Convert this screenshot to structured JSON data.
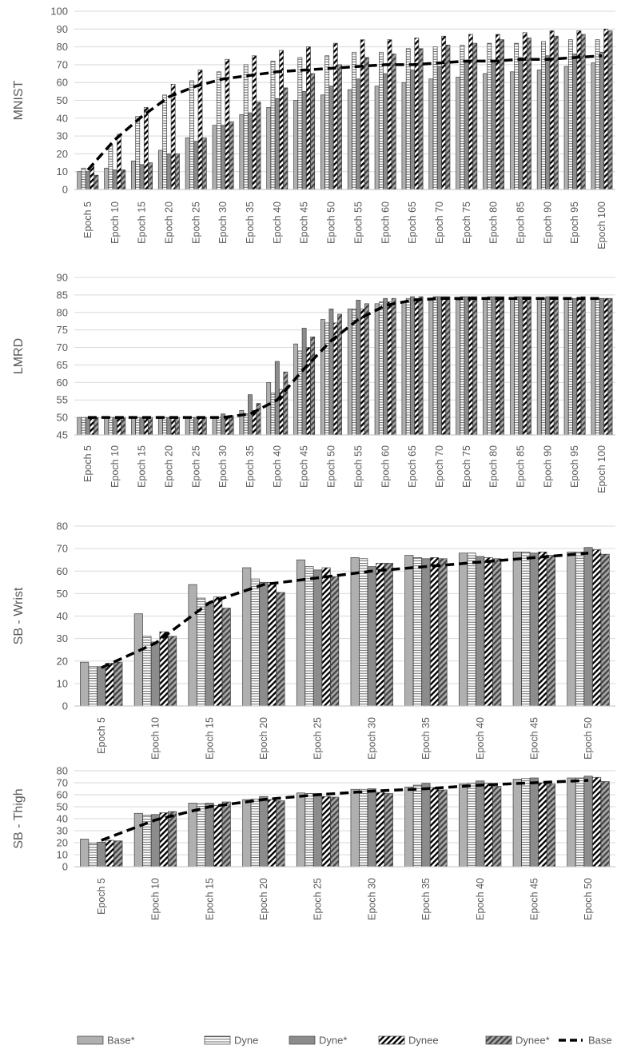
{
  "chart_data": [
    {
      "type": "bar",
      "title": "",
      "ylabel": "MNIST",
      "xlabel": "",
      "ylim": [
        0,
        100
      ],
      "ystep": 10,
      "grid": true,
      "categories": [
        "Epoch 5",
        "Epoch 10",
        "Epoch 15",
        "Epoch 20",
        "Epoch 25",
        "Epoch 30",
        "Epoch 35",
        "Epoch 40",
        "Epoch 45",
        "Epoch 50",
        "Epoch 55",
        "Epoch 60",
        "Epoch 65",
        "Epoch 70",
        "Epoch 75",
        "Epoch 80",
        "Epoch 85",
        "Epoch 90",
        "Epoch 95",
        "Epoch 100"
      ],
      "series": [
        {
          "name": "Base*",
          "values": [
            10,
            12,
            16,
            22,
            29,
            36,
            42,
            46,
            50,
            53,
            56,
            58,
            60,
            62,
            63,
            65,
            66,
            67,
            69,
            71
          ]
        },
        {
          "name": "Dyne",
          "values": [
            12,
            25,
            41,
            53,
            61,
            66,
            70,
            72,
            74,
            75,
            77,
            77,
            79,
            80,
            81,
            82,
            82,
            83,
            84,
            84
          ]
        },
        {
          "name": "Dyne*",
          "values": [
            10,
            11,
            14,
            20,
            27,
            36,
            43,
            51,
            55,
            58,
            62,
            65,
            67,
            69,
            71,
            72,
            74,
            75,
            76,
            77
          ]
        },
        {
          "name": "Dynee",
          "values": [
            13,
            31,
            46,
            59,
            67,
            73,
            75,
            78,
            80,
            82,
            84,
            84,
            85,
            86,
            87,
            87,
            88,
            89,
            89,
            90
          ]
        },
        {
          "name": "Dynee*",
          "values": [
            8,
            11,
            15,
            20,
            29,
            38,
            49,
            57,
            65,
            70,
            74,
            76,
            79,
            81,
            82,
            84,
            85,
            86,
            87,
            89
          ]
        },
        {
          "name": "Base",
          "type": "line",
          "values": [
            11,
            28,
            41,
            52,
            58,
            62,
            64,
            66,
            67,
            68,
            69,
            70,
            70,
            71,
            72,
            72,
            73,
            73,
            74,
            75
          ]
        }
      ]
    },
    {
      "type": "bar",
      "title": "",
      "ylabel": "LMRD",
      "xlabel": "",
      "ylim": [
        45,
        90
      ],
      "ystep": 5,
      "grid": true,
      "categories": [
        "Epoch 5",
        "Epoch 10",
        "Epoch 15",
        "Epoch 20",
        "Epoch 25",
        "Epoch 30",
        "Epoch 35",
        "Epoch 40",
        "Epoch 45",
        "Epoch 50",
        "Epoch 55",
        "Epoch 60",
        "Epoch 65",
        "Epoch 70",
        "Epoch 75",
        "Epoch 80",
        "Epoch 85",
        "Epoch 90",
        "Epoch 95",
        "Epoch 100"
      ],
      "series": [
        {
          "name": "Base*",
          "values": [
            50,
            50,
            50,
            50,
            50,
            50,
            52,
            60,
            71,
            78,
            81,
            82.5,
            83,
            83.5,
            83.5,
            84,
            84,
            84,
            84,
            84
          ]
        },
        {
          "name": "Dyne",
          "values": [
            50,
            50,
            50,
            50,
            50,
            50,
            51,
            57,
            69,
            77,
            81,
            83,
            84,
            84.5,
            84.5,
            84.5,
            84.5,
            84,
            84,
            84
          ]
        },
        {
          "name": "Dyne*",
          "values": [
            50,
            50,
            50,
            50,
            50,
            51,
            56.5,
            66,
            75.5,
            81,
            83.5,
            84,
            84.5,
            84.5,
            84.5,
            84.5,
            84.5,
            84.5,
            84,
            84
          ]
        },
        {
          "name": "Dynee",
          "values": [
            50,
            50,
            50,
            50,
            50,
            50,
            52,
            58,
            70,
            77,
            81,
            83,
            84,
            84.5,
            84.5,
            84.5,
            84.5,
            84.5,
            84,
            84
          ]
        },
        {
          "name": "Dynee*",
          "values": [
            50,
            50,
            50,
            50,
            50,
            50.5,
            54,
            63,
            73,
            79.5,
            82.5,
            84,
            84.5,
            84.5,
            84.5,
            84.5,
            84.5,
            84.5,
            84.5,
            84
          ]
        },
        {
          "name": "Base",
          "type": "line",
          "values": [
            50,
            50,
            50,
            50,
            50,
            50,
            51,
            55,
            64,
            72,
            78,
            82,
            83.5,
            84,
            84,
            84,
            84,
            84,
            84,
            84
          ]
        }
      ]
    },
    {
      "type": "bar",
      "title": "",
      "ylabel": "SB - Wrist",
      "xlabel": "",
      "ylim": [
        0,
        80
      ],
      "ystep": 10,
      "grid": true,
      "categories": [
        "Epoch 5",
        "Epoch 10",
        "Epoch 15",
        "Epoch 20",
        "Epoch 25",
        "Epoch 30",
        "Epoch 35",
        "Epoch 40",
        "Epoch 45",
        "Epoch 50"
      ],
      "series": [
        {
          "name": "Base*",
          "values": [
            19.5,
            41,
            54,
            61.5,
            65,
            66,
            67,
            68,
            68.5,
            68.5
          ]
        },
        {
          "name": "Dyne",
          "values": [
            17.5,
            31,
            48,
            56.5,
            62,
            65.5,
            66,
            68,
            68.5,
            68.5
          ]
        },
        {
          "name": "Dyne*",
          "values": [
            17.5,
            28.5,
            46,
            55,
            60.5,
            62,
            65.5,
            66.5,
            68,
            70.5
          ]
        },
        {
          "name": "Dynee",
          "values": [
            19,
            33,
            48.5,
            55,
            61.5,
            63.5,
            66,
            66,
            68.5,
            69.5
          ]
        },
        {
          "name": "Dynee*",
          "values": [
            19.5,
            31,
            43.5,
            50.5,
            57.5,
            63.5,
            65.5,
            65.5,
            67,
            67.5
          ]
        },
        {
          "name": "Base",
          "type": "line",
          "values": [
            17,
            28,
            46,
            54,
            57,
            60,
            62,
            64,
            66,
            68
          ]
        }
      ]
    },
    {
      "type": "bar",
      "title": "",
      "ylabel": "SB - Thigh",
      "xlabel": "",
      "ylim": [
        0,
        80
      ],
      "ystep": 10,
      "grid": true,
      "categories": [
        "Epoch 5",
        "Epoch 10",
        "Epoch 15",
        "Epoch 20",
        "Epoch 25",
        "Epoch 30",
        "Epoch 35",
        "Epoch 40",
        "Epoch 45",
        "Epoch 50"
      ],
      "series": [
        {
          "name": "Base*",
          "values": [
            23,
            44.5,
            53,
            56,
            61.5,
            64.5,
            66.5,
            69,
            73,
            74
          ]
        },
        {
          "name": "Dyne",
          "values": [
            19.5,
            43,
            52.5,
            56.5,
            61,
            64.5,
            68,
            69.5,
            73.5,
            74
          ]
        },
        {
          "name": "Dyne*",
          "values": [
            20.5,
            43.5,
            53,
            58.5,
            61,
            65,
            69.5,
            71.5,
            74,
            75.5
          ]
        },
        {
          "name": "Dynee",
          "values": [
            22,
            45,
            51,
            56,
            58.5,
            62,
            66,
            69.5,
            70,
            74.5
          ]
        },
        {
          "name": "Dynee*",
          "values": [
            21.5,
            46,
            54,
            55,
            58,
            61,
            64,
            67,
            69,
            71
          ]
        },
        {
          "name": "Base",
          "type": "line",
          "values": [
            22,
            39,
            50,
            56,
            60,
            63,
            65,
            68,
            70,
            72
          ]
        }
      ]
    }
  ],
  "legend": {
    "placement": "bottom",
    "items": [
      {
        "label": "Base*",
        "pattern": "solid-gray"
      },
      {
        "label": "Dyne",
        "pattern": "horizontal-lines"
      },
      {
        "label": "Dyne*",
        "pattern": "dark-gray"
      },
      {
        "label": "Dynee",
        "pattern": "diagonal-stripes"
      },
      {
        "label": "Dynee*",
        "pattern": "dark-diagonal"
      },
      {
        "label": "Base",
        "pattern": "dashed-line"
      }
    ]
  },
  "colors": {
    "bar_outline": "#404040",
    "base_star_fill": "#b0b0b0",
    "dyne_star_fill": "#8c8c8c",
    "gridline": "#d9d9d9",
    "axis_text": "#595959",
    "line": "#000000"
  }
}
